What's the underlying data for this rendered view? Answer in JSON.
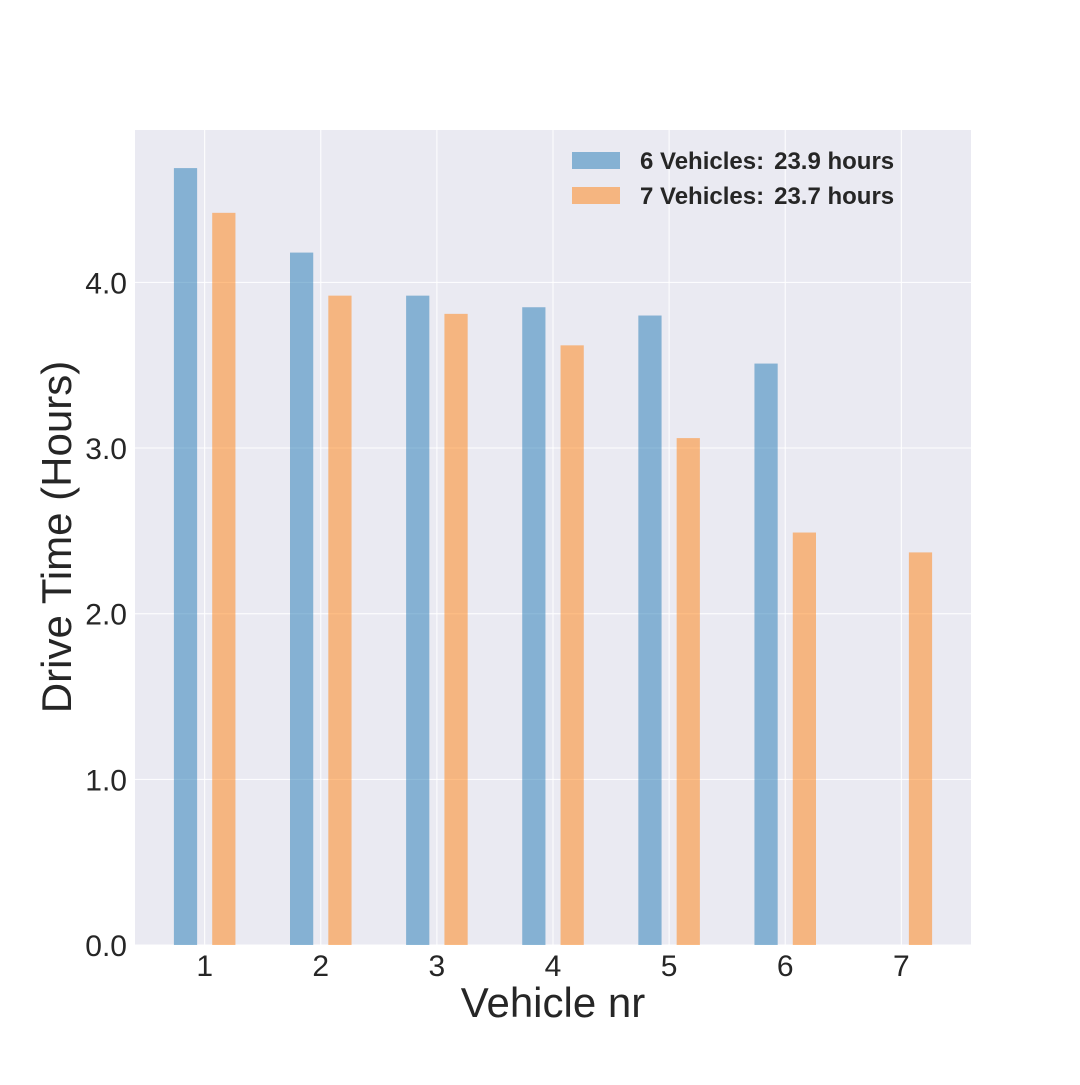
{
  "chart_data": {
    "type": "bar",
    "xlabel": "Vehicle nr",
    "ylabel": "Drive Time (Hours)",
    "categories": [
      "1",
      "2",
      "3",
      "4",
      "5",
      "6",
      "7"
    ],
    "ylim": [
      0,
      4.92
    ],
    "yticks": [
      "0.0",
      "1.0",
      "2.0",
      "3.0",
      "4.0"
    ],
    "grid": true,
    "legend_position": "top-right",
    "series": [
      {
        "name": "6 Vehicles",
        "legend_value": "23.9 hours",
        "color": "#1f77b4",
        "values": [
          4.69,
          4.18,
          3.92,
          3.85,
          3.8,
          3.51,
          null
        ]
      },
      {
        "name": "7 Vehicles",
        "legend_value": "23.7 hours",
        "color": "#ff7f0e",
        "values": [
          4.42,
          3.92,
          3.81,
          3.62,
          3.06,
          2.49,
          2.37
        ]
      }
    ],
    "legend_separator": ":",
    "colors": {
      "plot_background": "#eaeaf2",
      "grid": "#ffffff",
      "text": "#262626"
    }
  }
}
